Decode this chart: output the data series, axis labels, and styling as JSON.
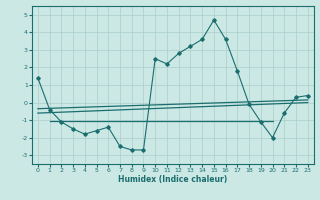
{
  "title": "",
  "xlabel": "Humidex (Indice chaleur)",
  "ylabel": "",
  "background_color": "#cce8e5",
  "grid_color": "#aacfcc",
  "line_color": "#1a6e6e",
  "xlim": [
    -0.5,
    23.5
  ],
  "ylim": [
    -3.5,
    5.5
  ],
  "xticks": [
    0,
    1,
    2,
    3,
    4,
    5,
    6,
    7,
    8,
    9,
    10,
    11,
    12,
    13,
    14,
    15,
    16,
    17,
    18,
    19,
    20,
    21,
    22,
    23
  ],
  "yticks": [
    -3,
    -2,
    -1,
    0,
    1,
    2,
    3,
    4,
    5
  ],
  "main_x": [
    0,
    1,
    2,
    3,
    4,
    5,
    6,
    7,
    8,
    9,
    10,
    11,
    12,
    13,
    14,
    15,
    16,
    17,
    18,
    19,
    20,
    21,
    22,
    23
  ],
  "main_y": [
    1.4,
    -0.4,
    -1.1,
    -1.5,
    -1.8,
    -1.6,
    -1.4,
    -2.5,
    -2.7,
    -2.7,
    2.5,
    2.2,
    2.8,
    3.2,
    3.6,
    4.7,
    3.6,
    1.8,
    -0.1,
    -1.1,
    -2.0,
    -0.6,
    0.3,
    0.4
  ],
  "trend1_x": [
    0,
    23
  ],
  "trend1_y": [
    -0.35,
    0.15
  ],
  "trend2_x": [
    0,
    23
  ],
  "trend2_y": [
    -0.6,
    0.0
  ],
  "flat_line_x": [
    1,
    20
  ],
  "flat_line_y": [
    -1.05,
    -1.05
  ]
}
